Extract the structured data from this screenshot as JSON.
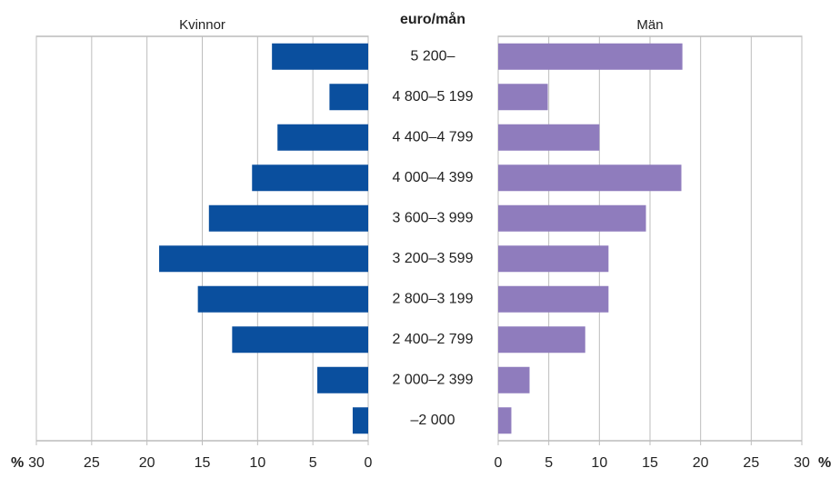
{
  "chart_data": {
    "type": "bar",
    "orientation": "horizontal",
    "category_title": "euro/mån",
    "unit": "%",
    "categories": [
      "5 200–",
      "4 800–5 199",
      "4 400–4 799",
      "4 000–4 399",
      "3 600–3 999",
      "3 200–3 599",
      "2 800–3 199",
      "2 400–2 799",
      "2 000–2 399",
      "–2 000"
    ],
    "series": [
      {
        "name": "Kvinnor",
        "color": "#0a4f9e",
        "side": "left",
        "values": [
          8.7,
          3.5,
          8.2,
          10.5,
          14.4,
          18.9,
          15.4,
          12.3,
          4.6,
          1.4
        ]
      },
      {
        "name": "Män",
        "color": "#8f7cbd",
        "side": "right",
        "values": [
          18.2,
          4.9,
          10.0,
          18.1,
          14.6,
          10.9,
          10.9,
          8.6,
          3.1,
          1.3
        ]
      }
    ],
    "xlim": [
      0,
      30
    ],
    "xticks": [
      0,
      5,
      10,
      15,
      20,
      25,
      30
    ],
    "grid": true
  }
}
